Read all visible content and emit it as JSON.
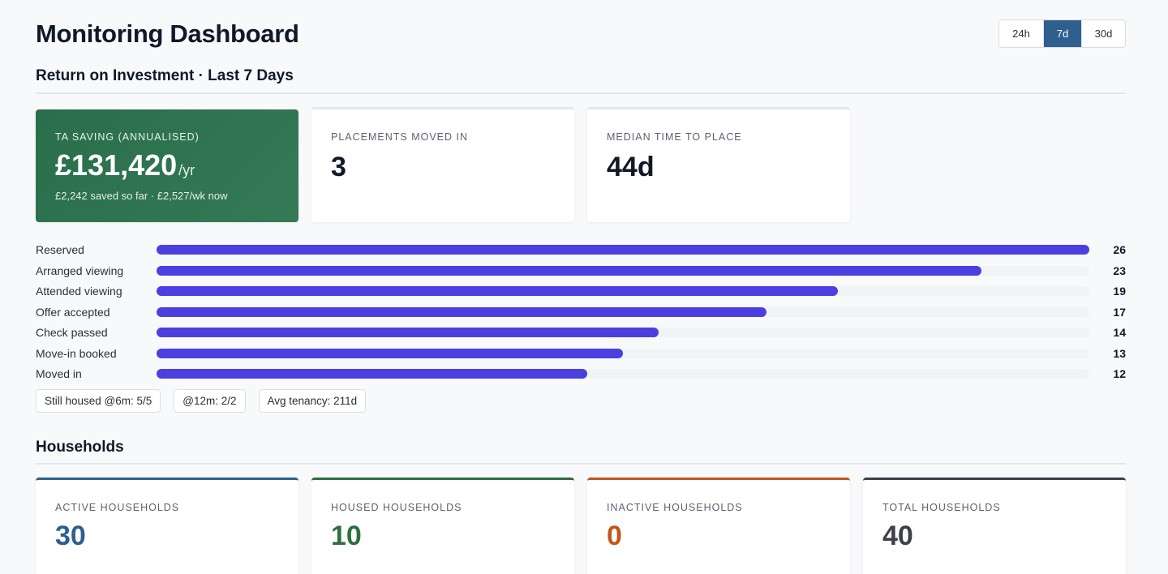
{
  "header": {
    "title": "Monitoring Dashboard",
    "ranges": [
      {
        "label": "24h",
        "active": false
      },
      {
        "label": "7d",
        "active": true
      },
      {
        "label": "30d",
        "active": false
      }
    ]
  },
  "roi": {
    "section_title": "Return on Investment · Last 7 Days",
    "ta_saving": {
      "label": "TA SAVING (ANNUALISED)",
      "value": "£131,420",
      "unit": "/yr",
      "sub": "£2,242 saved so far · £2,527/wk now"
    },
    "placements": {
      "label": "PLACEMENTS MOVED IN",
      "value": "3"
    },
    "median_time": {
      "label": "MEDIAN TIME TO PLACE",
      "value": "44d"
    }
  },
  "funnel": {
    "max": 26,
    "bar_color": "#4b3fe0",
    "stages": [
      {
        "label": "Reserved",
        "value": 26,
        "display": "26"
      },
      {
        "label": "Arranged viewing",
        "value": 23,
        "display": "23"
      },
      {
        "label": "Attended viewing",
        "value": 19,
        "display": "19"
      },
      {
        "label": "Offer accepted",
        "value": 17,
        "display": "17"
      },
      {
        "label": "Check passed",
        "value": 14,
        "display": "14"
      },
      {
        "label": "Move-in booked",
        "value": 13,
        "display": "13"
      },
      {
        "label": "Moved in",
        "value": 12,
        "display": "12"
      }
    ]
  },
  "chips": [
    "Still housed @6m: 5/5",
    "@12m: 2/2",
    "Avg tenancy: 211d"
  ],
  "households": {
    "section_title": "Households",
    "cards": [
      {
        "label": "ACTIVE HOUSEHOLDS",
        "value": "30",
        "color": "#2f5f8f"
      },
      {
        "label": "HOUSED HOUSEHOLDS",
        "value": "10",
        "color": "#2f6e3f"
      },
      {
        "label": "INACTIVE HOUSEHOLDS",
        "value": "0",
        "color": "#c0571a"
      },
      {
        "label": "TOTAL HOUSEHOLDS",
        "value": "40",
        "color": "#3d4049"
      }
    ]
  }
}
